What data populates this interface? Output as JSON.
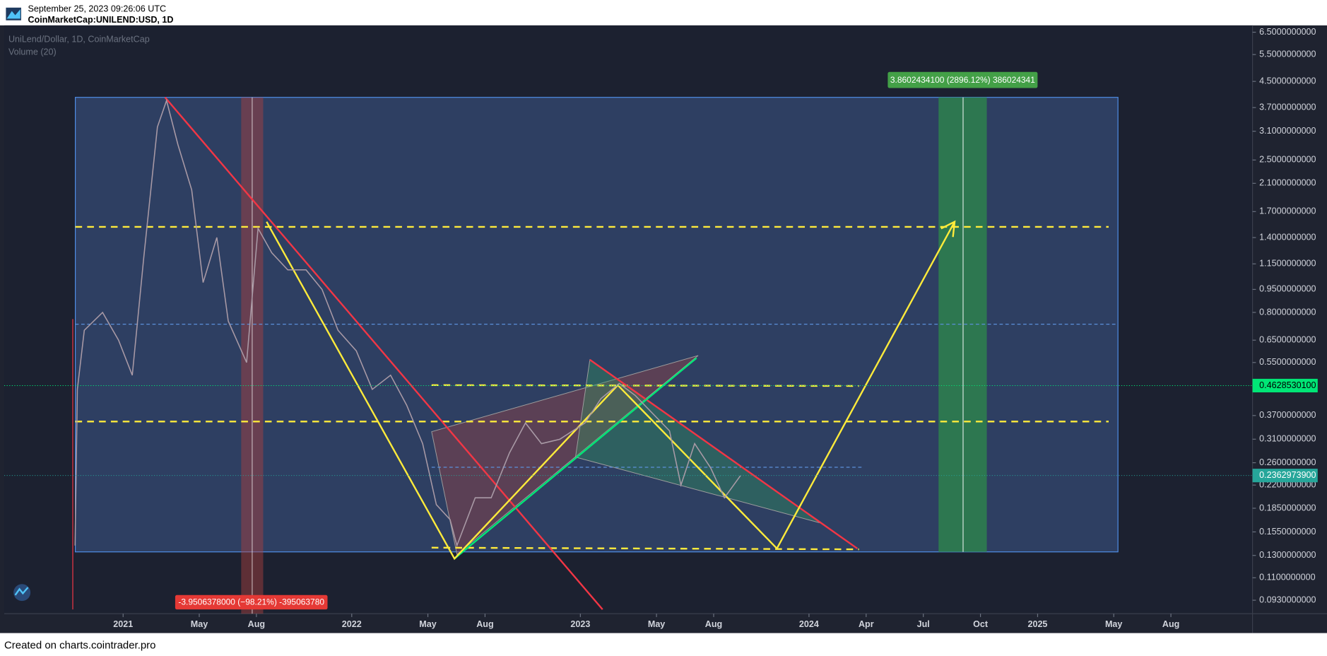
{
  "header": {
    "date": "September 25, 2023 09:26:06 UTC",
    "symbol": "CoinMarketCap:UNILEND:USD, 1D"
  },
  "chart_data": {
    "type": "line",
    "title": "UniLend/Dollar, 1D, CoinMarketCap",
    "subtitle": "Volume (20)",
    "log_scale": true,
    "grid": false,
    "color": "#a99aa6",
    "xlim": [
      2020.48,
      2025.94
    ],
    "ylim": [
      0.0841,
      6.84
    ],
    "xticks": [
      {
        "value": 2021.0,
        "label": "2021"
      },
      {
        "value": 2021.333,
        "label": "May"
      },
      {
        "value": 2021.583,
        "label": "Aug"
      },
      {
        "value": 2022.0,
        "label": "2022"
      },
      {
        "value": 2022.333,
        "label": "May"
      },
      {
        "value": 2022.583,
        "label": "Aug"
      },
      {
        "value": 2023.0,
        "label": "2023"
      },
      {
        "value": 2023.333,
        "label": "May"
      },
      {
        "value": 2023.583,
        "label": "Aug"
      },
      {
        "value": 2024.0,
        "label": "2024"
      },
      {
        "value": 2024.25,
        "label": "Apr"
      },
      {
        "value": 2024.5,
        "label": "Jul"
      },
      {
        "value": 2024.75,
        "label": "Oct"
      },
      {
        "value": 2025.0,
        "label": "2025"
      },
      {
        "value": 2025.333,
        "label": "May"
      },
      {
        "value": 2025.583,
        "label": "Aug"
      }
    ],
    "yticks": [
      {
        "value": 6.5,
        "label": "6.5000000000"
      },
      {
        "value": 5.5,
        "label": "5.5000000000"
      },
      {
        "value": 4.5,
        "label": "4.5000000000"
      },
      {
        "value": 3.7,
        "label": "3.7000000000"
      },
      {
        "value": 3.1,
        "label": "3.1000000000"
      },
      {
        "value": 2.5,
        "label": "2.5000000000"
      },
      {
        "value": 2.1,
        "label": "2.1000000000"
      },
      {
        "value": 1.7,
        "label": "1.7000000000"
      },
      {
        "value": 1.4,
        "label": "1.4000000000"
      },
      {
        "value": 1.15,
        "label": "1.1500000000"
      },
      {
        "value": 0.95,
        "label": "0.9500000000"
      },
      {
        "value": 0.8,
        "label": "0.8000000000"
      },
      {
        "value": 0.65,
        "label": "0.6500000000"
      },
      {
        "value": 0.55,
        "label": "0.5500000000"
      },
      {
        "value": 0.37,
        "label": "0.3700000000"
      },
      {
        "value": 0.31,
        "label": "0.3100000000"
      },
      {
        "value": 0.26,
        "label": "0.2600000000"
      },
      {
        "value": 0.22,
        "label": "0.2200000000"
      },
      {
        "value": 0.185,
        "label": "0.1850000000"
      },
      {
        "value": 0.155,
        "label": "0.1550000000"
      },
      {
        "value": 0.13,
        "label": "0.1300000000"
      },
      {
        "value": 0.11,
        "label": "0.1100000000"
      },
      {
        "value": 0.093,
        "label": "0.0930000000"
      }
    ],
    "price_markers": [
      {
        "value": 0.46285301,
        "label": "0.4628530100",
        "color": "#00e676"
      },
      {
        "value": 0.23629739,
        "label": "0.2362973900",
        "color": "#26a69a"
      }
    ],
    "annotations": [
      "3.8602434100 (2896.12%) 386024341",
      "-3.9506378000 (−98.21%) -395063780"
    ],
    "x": [
      2020.79,
      2020.8,
      2020.83,
      2020.91,
      2020.98,
      2021.04,
      2021.09,
      2021.15,
      2021.19,
      2021.24,
      2021.3,
      2021.35,
      2021.41,
      2021.46,
      2021.54,
      2021.59,
      2021.65,
      2021.72,
      2021.8,
      2021.87,
      2021.94,
      2022.02,
      2022.09,
      2022.17,
      2022.24,
      2022.31,
      2022.37,
      2022.43,
      2022.46,
      2022.54,
      2022.61,
      2022.69,
      2022.76,
      2022.83,
      2022.91,
      2023.02,
      2023.09,
      2023.17,
      2023.24,
      2023.31,
      2023.39,
      2023.44,
      2023.5,
      2023.57,
      2023.63,
      2023.7
    ],
    "values": [
      0.14,
      0.45,
      0.7,
      0.8,
      0.65,
      0.5,
      1.2,
      3.2,
      3.9,
      2.8,
      2.0,
      1.0,
      1.4,
      0.75,
      0.55,
      1.5,
      1.25,
      1.1,
      1.1,
      0.95,
      0.7,
      0.6,
      0.45,
      0.5,
      0.4,
      0.3,
      0.19,
      0.17,
      0.14,
      0.2,
      0.2,
      0.28,
      0.35,
      0.3,
      0.31,
      0.35,
      0.42,
      0.47,
      0.43,
      0.38,
      0.33,
      0.22,
      0.3,
      0.25,
      0.2,
      0.236
    ]
  },
  "footer": "Created on charts.cointrader.pro"
}
